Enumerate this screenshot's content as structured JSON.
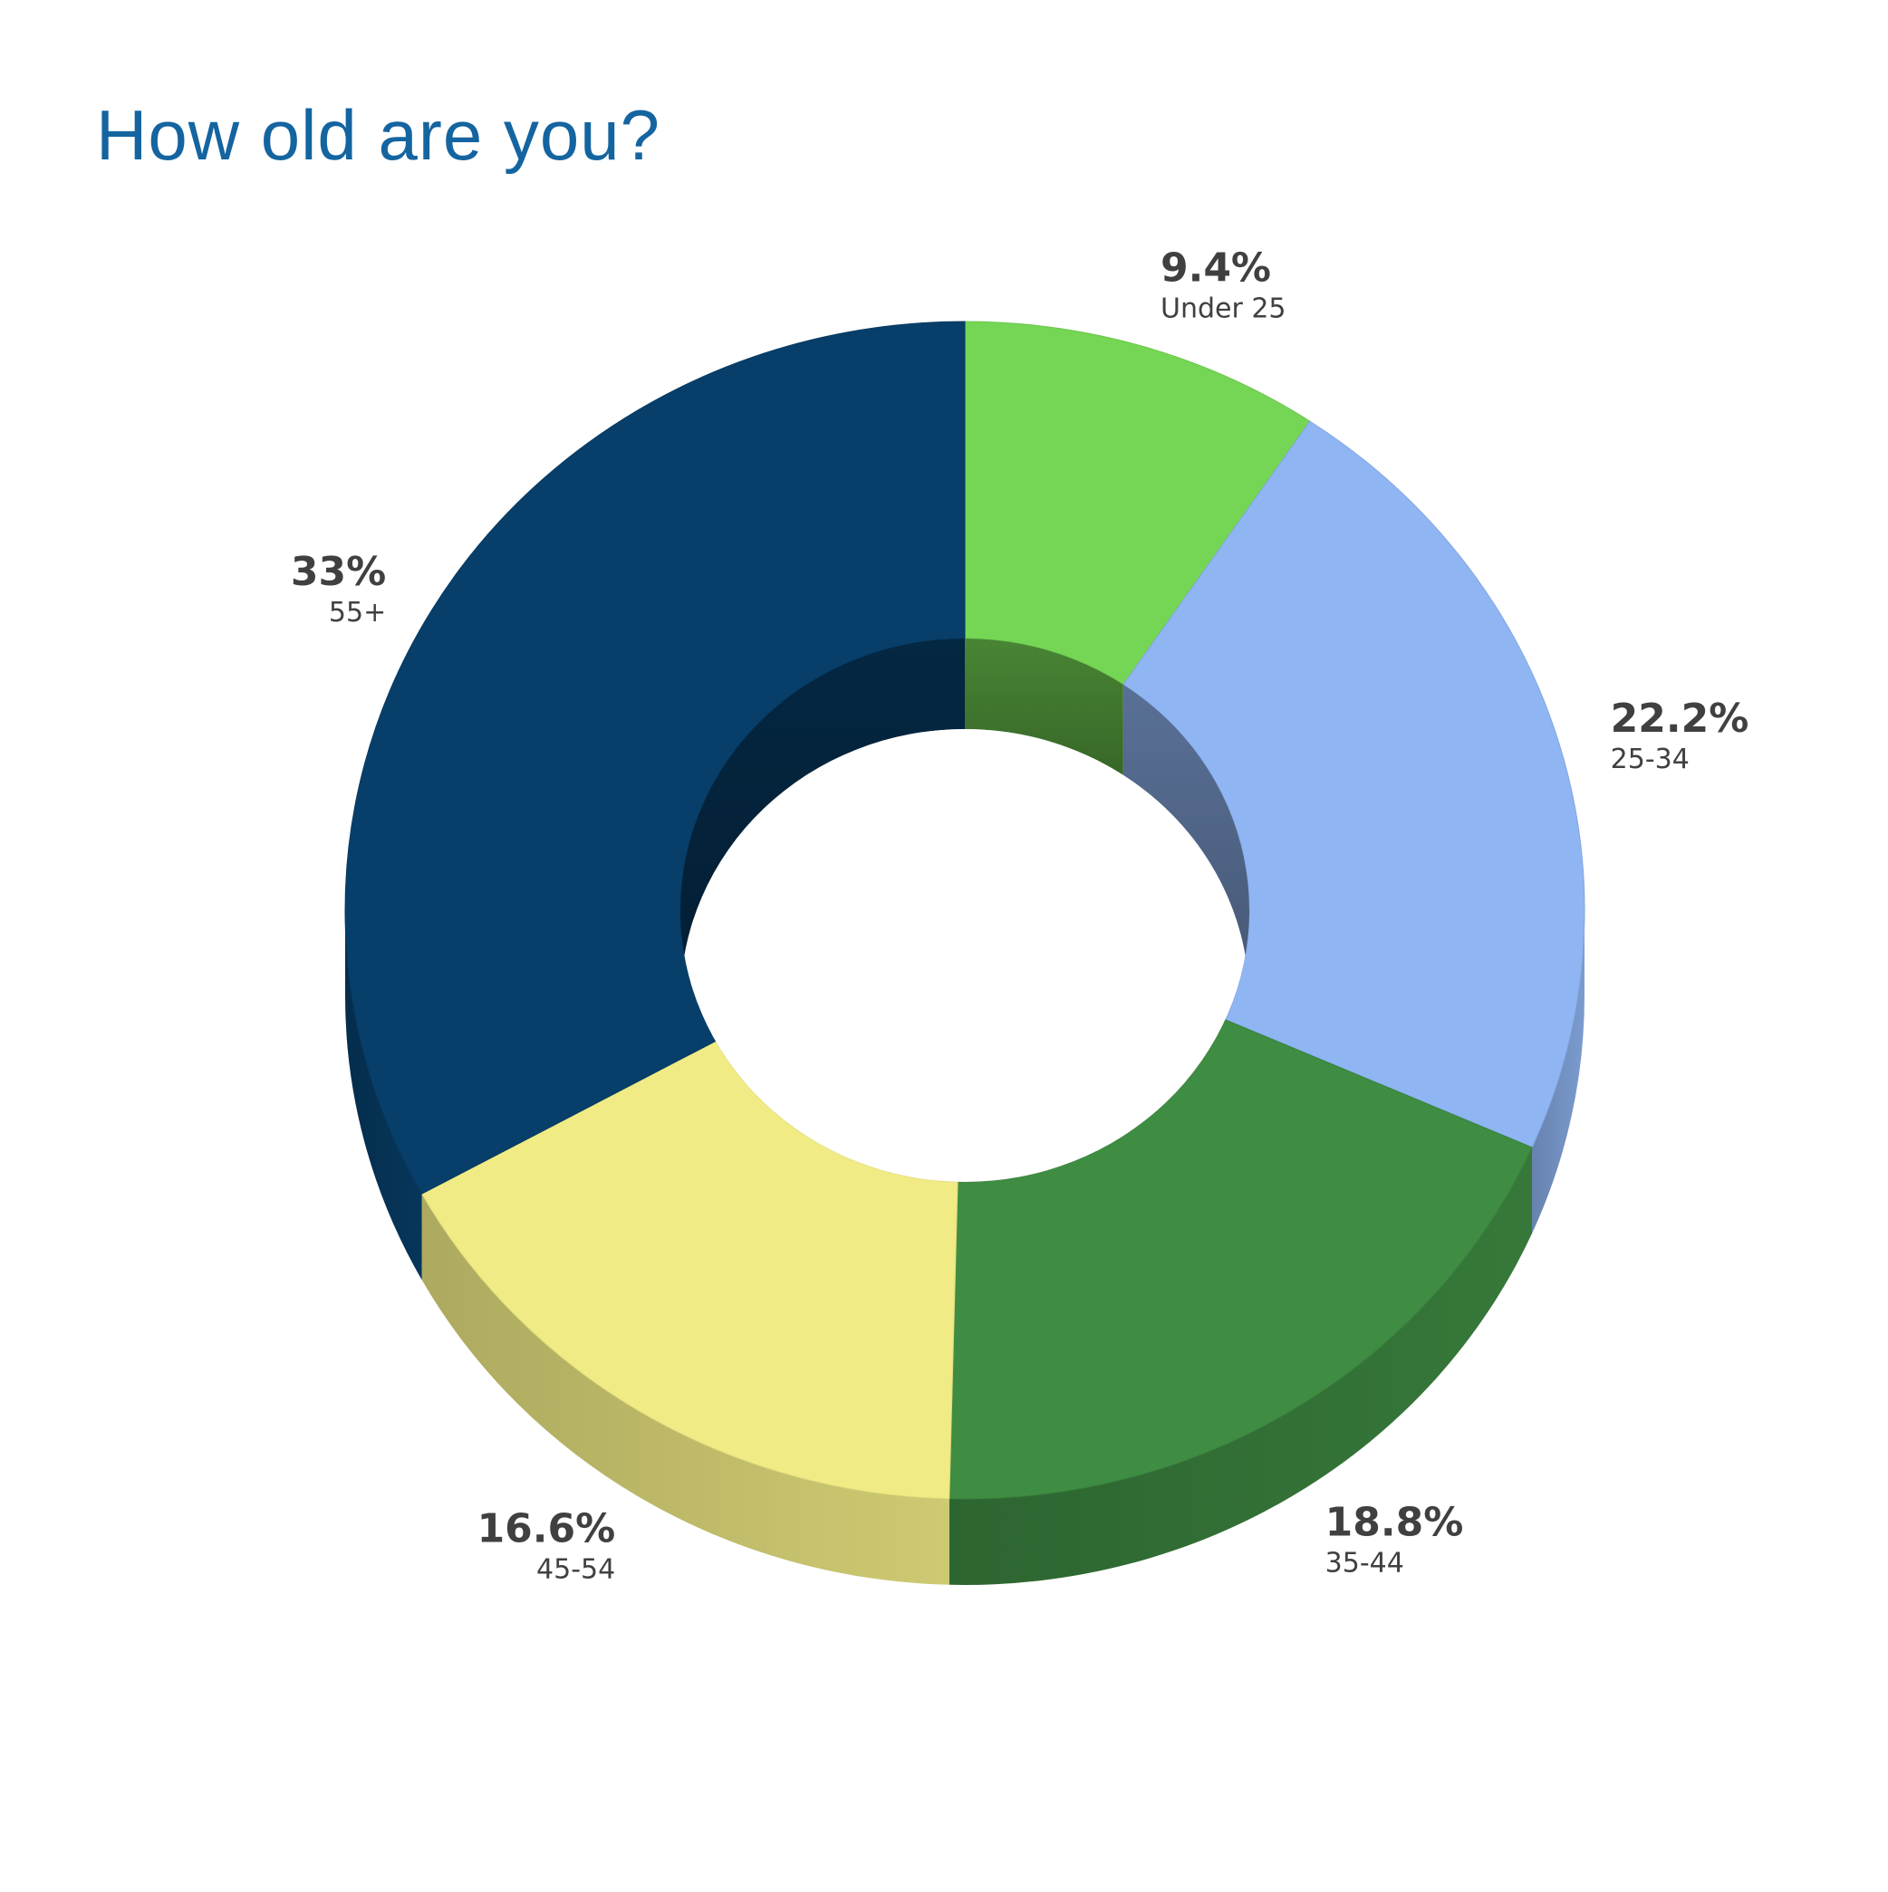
{
  "title": "How old are you?",
  "colors": {
    "title": "#1464a0",
    "label": "#404040"
  },
  "chart_data": {
    "type": "pie",
    "variant": "3d-donut",
    "title": "How old are you?",
    "legend": "none",
    "slices": [
      {
        "category": "Under 25",
        "value": 9.4,
        "label": "9.4%",
        "color": "#74d654"
      },
      {
        "category": "25-34",
        "value": 22.2,
        "label": "22.2%",
        "color": "#8fb5f2"
      },
      {
        "category": "35-44",
        "value": 18.8,
        "label": "18.8%",
        "color": "#3f8c43"
      },
      {
        "category": "45-54",
        "value": 16.6,
        "label": "16.6%",
        "color": "#f0eb84"
      },
      {
        "category": "55+",
        "value": 33,
        "label": "33%",
        "color": "#073f6a"
      }
    ]
  }
}
